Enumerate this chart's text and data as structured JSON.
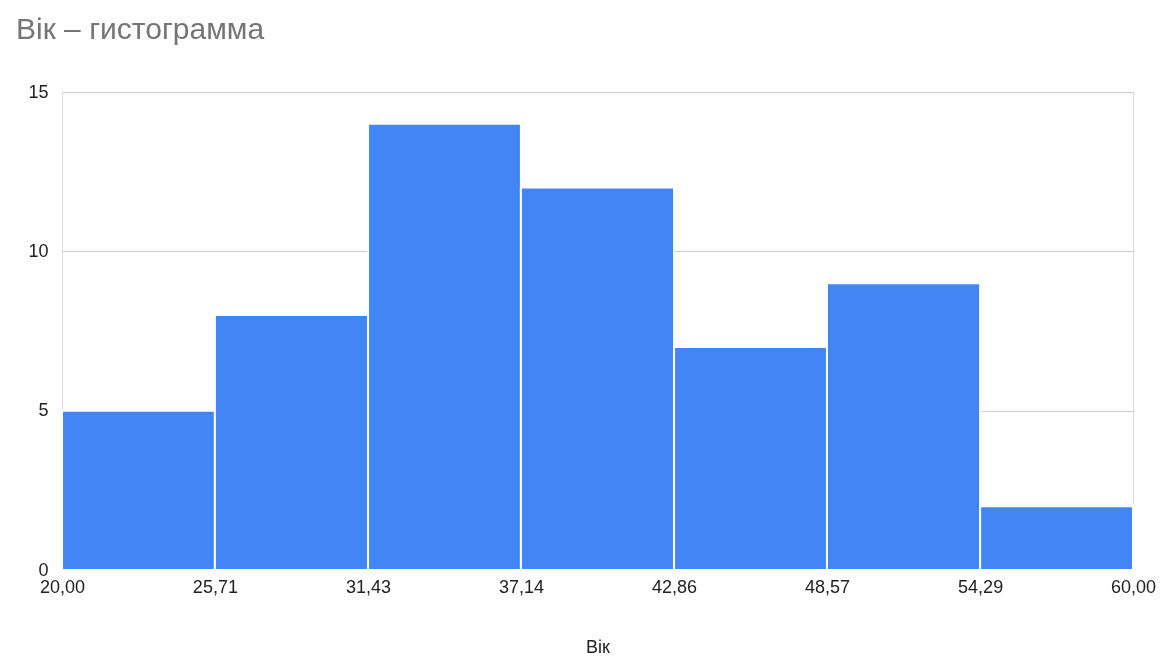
{
  "chart_data": {
    "type": "histogram",
    "title": "Вік  – гистограмма",
    "xlabel": "Вік",
    "bins": [
      20,
      25.71,
      31.43,
      37.14,
      42.86,
      48.57,
      54.29,
      60
    ],
    "values": [
      5,
      8,
      14,
      12,
      7,
      9,
      2
    ],
    "color": "#4285f4",
    "xlim": [
      20,
      60
    ],
    "xticks": [
      {
        "value": 20,
        "label": "20,00"
      },
      {
        "value": 25.71,
        "label": "25,71"
      },
      {
        "value": 31.43,
        "label": "31,43"
      },
      {
        "value": 37.14,
        "label": "37,14"
      },
      {
        "value": 42.86,
        "label": "42,86"
      },
      {
        "value": 48.57,
        "label": "48,57"
      },
      {
        "value": 54.29,
        "label": "54,29"
      },
      {
        "value": 60,
        "label": "60,00"
      }
    ],
    "ylim": [
      0,
      15
    ],
    "yticks": [
      0,
      5,
      10,
      15
    ],
    "grid": "y"
  }
}
